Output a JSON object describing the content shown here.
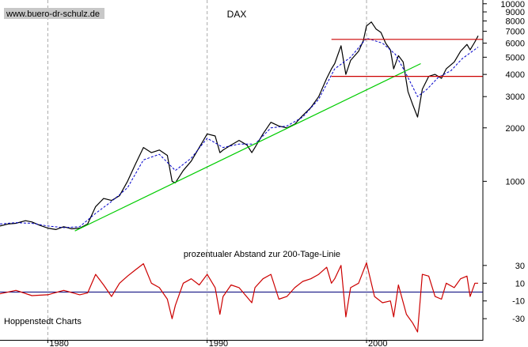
{
  "watermark": "www.buero-dr-schulz.de",
  "source_label": "Hoppenstedt Charts",
  "chart_data": [
    {
      "type": "line",
      "title": "DAX",
      "yscale": "log",
      "ylim": [
        420,
        10500
      ],
      "xlim": [
        1977,
        2007.3
      ],
      "yticks": [
        1000,
        2000,
        3000,
        4000,
        5000,
        6000,
        7000,
        8000,
        9000,
        10000
      ],
      "grid": "vertical dashed at decades",
      "series": [
        {
          "color": "#000000",
          "points": [
            [
              1977,
              560
            ],
            [
              1977.5,
              575
            ],
            [
              1978,
              580
            ],
            [
              1978.6,
              600
            ],
            [
              1979,
              590
            ],
            [
              1979.5,
              565
            ],
            [
              1980,
              545
            ],
            [
              1980.5,
              535
            ],
            [
              1981,
              555
            ],
            [
              1981.5,
              540
            ],
            [
              1982,
              545
            ],
            [
              1982.5,
              575
            ],
            [
              1983,
              720
            ],
            [
              1983.5,
              800
            ],
            [
              1984,
              780
            ],
            [
              1984.5,
              830
            ],
            [
              1985,
              1000
            ],
            [
              1985.5,
              1250
            ],
            [
              1986,
              1550
            ],
            [
              1986.5,
              1450
            ],
            [
              1987,
              1500
            ],
            [
              1987.5,
              1400
            ],
            [
              1987.8,
              1000
            ],
            [
              1988,
              980
            ],
            [
              1988.5,
              1150
            ],
            [
              1989,
              1300
            ],
            [
              1989.5,
              1550
            ],
            [
              1990,
              1850
            ],
            [
              1990.5,
              1800
            ],
            [
              1990.8,
              1450
            ],
            [
              1991,
              1500
            ],
            [
              1991.5,
              1600
            ],
            [
              1992,
              1700
            ],
            [
              1992.5,
              1600
            ],
            [
              1992.8,
              1450
            ],
            [
              1993,
              1550
            ],
            [
              1993.5,
              1850
            ],
            [
              1994,
              2150
            ],
            [
              1994.5,
              2050
            ],
            [
              1995,
              2000
            ],
            [
              1995.5,
              2100
            ],
            [
              1996,
              2350
            ],
            [
              1996.5,
              2600
            ],
            [
              1997,
              3000
            ],
            [
              1997.5,
              3800
            ],
            [
              1997.8,
              4300
            ],
            [
              1998,
              4600
            ],
            [
              1998.4,
              5800
            ],
            [
              1998.7,
              4000
            ],
            [
              1999,
              4800
            ],
            [
              1999.5,
              5400
            ],
            [
              1999.8,
              6200
            ],
            [
              2000,
              7500
            ],
            [
              2000.3,
              7900
            ],
            [
              2000.6,
              7200
            ],
            [
              2000.9,
              6900
            ],
            [
              2001.2,
              6000
            ],
            [
              2001.5,
              5500
            ],
            [
              2001.7,
              4300
            ],
            [
              2002,
              5100
            ],
            [
              2002.3,
              4700
            ],
            [
              2002.6,
              3200
            ],
            [
              2002.9,
              2700
            ],
            [
              2003.2,
              2300
            ],
            [
              2003.5,
              3300
            ],
            [
              2003.9,
              3900
            ],
            [
              2004.3,
              4000
            ],
            [
              2004.7,
              3800
            ],
            [
              2005,
              4300
            ],
            [
              2005.5,
              4700
            ],
            [
              2005.9,
              5400
            ],
            [
              2006.3,
              5900
            ],
            [
              2006.5,
              5500
            ],
            [
              2006.8,
              6100
            ],
            [
              2007,
              6600
            ]
          ]
        },
        {
          "style": "dashed",
          "color": "#0000cc",
          "points": [
            [
              1977,
              575
            ],
            [
              1978,
              585
            ],
            [
              1979,
              580
            ],
            [
              1980,
              560
            ],
            [
              1981,
              548
            ],
            [
              1982,
              555
            ],
            [
              1983,
              660
            ],
            [
              1984,
              770
            ],
            [
              1985,
              920
            ],
            [
              1986,
              1320
            ],
            [
              1987,
              1420
            ],
            [
              1988,
              1150
            ],
            [
              1989,
              1350
            ],
            [
              1990,
              1750
            ],
            [
              1991,
              1550
            ],
            [
              1992,
              1620
            ],
            [
              1993,
              1620
            ],
            [
              1994,
              2000
            ],
            [
              1995,
              2050
            ],
            [
              1996,
              2300
            ],
            [
              1997,
              2900
            ],
            [
              1998,
              4300
            ],
            [
              1999,
              5000
            ],
            [
              2000,
              6400
            ],
            [
              2001,
              6000
            ],
            [
              2001.8,
              5200
            ],
            [
              2002.5,
              4000
            ],
            [
              2003.2,
              3000
            ],
            [
              2003.8,
              3300
            ],
            [
              2004.5,
              3850
            ],
            [
              2005.3,
              4200
            ],
            [
              2006,
              4900
            ],
            [
              2007,
              5700
            ]
          ]
        },
        {
          "color": "#00cc00",
          "points": [
            [
              1981.7,
              525
            ],
            [
              2003.4,
              4600
            ]
          ]
        },
        {
          "color": "#cc0000",
          "points": [
            [
              1997.8,
              6300
            ],
            [
              2007.3,
              6300
            ]
          ]
        },
        {
          "color": "#cc0000",
          "points": [
            [
              1997.8,
              3900
            ],
            [
              2007.3,
              3900
            ]
          ]
        }
      ]
    },
    {
      "type": "line",
      "title": "prozentualer Abstand zur 200-Tage-Linie",
      "ylim": [
        -45,
        45
      ],
      "yticks": [
        30,
        10,
        -10,
        -30
      ],
      "xticks": [
        1980,
        1990,
        2000
      ],
      "baseline": 0,
      "series": [
        {
          "color": "#cc0000",
          "points": [
            [
              1977,
              -2
            ],
            [
              1978,
              2
            ],
            [
              1979,
              -4
            ],
            [
              1980,
              -3
            ],
            [
              1981,
              2
            ],
            [
              1982,
              -3
            ],
            [
              1982.5,
              -1
            ],
            [
              1983,
              20
            ],
            [
              1983.5,
              8
            ],
            [
              1984,
              -5
            ],
            [
              1984.5,
              10
            ],
            [
              1985,
              18
            ],
            [
              1985.5,
              25
            ],
            [
              1986,
              32
            ],
            [
              1986.5,
              10
            ],
            [
              1987,
              5
            ],
            [
              1987.5,
              -8
            ],
            [
              1987.8,
              -30
            ],
            [
              1988,
              -15
            ],
            [
              1988.5,
              10
            ],
            [
              1989,
              15
            ],
            [
              1989.5,
              8
            ],
            [
              1990,
              20
            ],
            [
              1990.5,
              5
            ],
            [
              1990.8,
              -25
            ],
            [
              1991,
              -5
            ],
            [
              1991.5,
              8
            ],
            [
              1992,
              5
            ],
            [
              1992.8,
              -12
            ],
            [
              1993,
              5
            ],
            [
              1993.5,
              15
            ],
            [
              1994,
              20
            ],
            [
              1994.5,
              -8
            ],
            [
              1995,
              -5
            ],
            [
              1995.5,
              5
            ],
            [
              1996,
              12
            ],
            [
              1996.5,
              15
            ],
            [
              1997,
              20
            ],
            [
              1997.5,
              28
            ],
            [
              1997.8,
              10
            ],
            [
              1998,
              15
            ],
            [
              1998.4,
              30
            ],
            [
              1998.7,
              -28
            ],
            [
              1999,
              5
            ],
            [
              1999.5,
              10
            ],
            [
              2000,
              33
            ],
            [
              2000.5,
              -5
            ],
            [
              2001,
              -12
            ],
            [
              2001.5,
              -10
            ],
            [
              2001.7,
              -28
            ],
            [
              2002,
              8
            ],
            [
              2002.5,
              -25
            ],
            [
              2002.9,
              -35
            ],
            [
              2003.2,
              -45
            ],
            [
              2003.5,
              20
            ],
            [
              2003.9,
              18
            ],
            [
              2004.3,
              -5
            ],
            [
              2004.7,
              -8
            ],
            [
              2005,
              10
            ],
            [
              2005.5,
              5
            ],
            [
              2005.9,
              15
            ],
            [
              2006.3,
              18
            ],
            [
              2006.5,
              -5
            ],
            [
              2006.8,
              10
            ],
            [
              2007,
              10
            ]
          ]
        }
      ]
    }
  ],
  "xtick_labels": [
    "1980",
    "1990",
    "2000"
  ]
}
